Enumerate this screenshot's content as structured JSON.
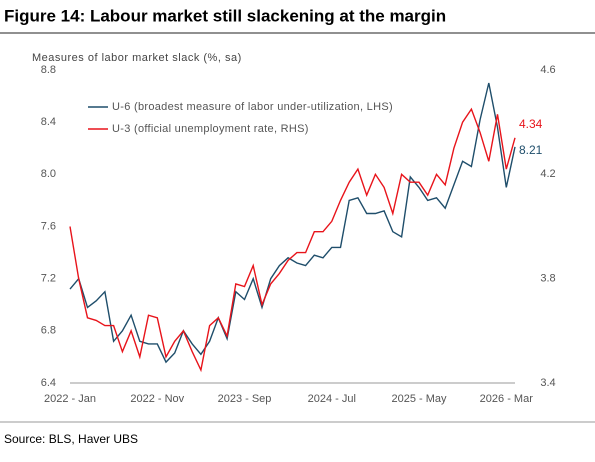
{
  "chart_data": {
    "type": "line",
    "title": "Figure 14: Labour market still slackening at the margin",
    "subtitle": "Measures of labor market slack (%, sa)",
    "source": "Source: BLS, Haver UBS",
    "categories": [
      "2022 - Jan",
      null,
      null,
      null,
      null,
      null,
      null,
      null,
      null,
      null,
      "2022 - Nov",
      null,
      null,
      null,
      null,
      null,
      null,
      null,
      null,
      null,
      "2023 - Sep",
      null,
      null,
      null,
      null,
      null,
      null,
      null,
      null,
      null,
      "2024 - Jul",
      null,
      null,
      null,
      null,
      null,
      null,
      null,
      null,
      null,
      "2025 - May",
      null,
      null,
      null,
      null,
      null,
      null,
      null,
      null,
      null,
      "2026 - Mar",
      null
    ],
    "series": [
      {
        "name": "U-6 (broadest measure of labor under-utilization, LHS)",
        "color": "#1f4e6b",
        "values": [
          7.12,
          7.2,
          6.98,
          7.03,
          7.1,
          6.72,
          6.8,
          6.92,
          6.72,
          6.7,
          6.7,
          6.56,
          6.63,
          6.8,
          6.7,
          6.62,
          6.72,
          6.9,
          6.74,
          7.1,
          7.04,
          7.2,
          6.98,
          7.2,
          7.3,
          7.36,
          7.32,
          7.3,
          7.38,
          7.36,
          7.44,
          7.44,
          7.8,
          7.82,
          7.7,
          7.7,
          7.72,
          7.56,
          7.52,
          7.98,
          7.9,
          7.8,
          7.82,
          7.74,
          7.92,
          8.1,
          8.06,
          8.42,
          8.7,
          8.36,
          7.9,
          8.21
        ]
      },
      {
        "name": "U-3 (official unemployment rate, RHS)",
        "color": "#e8141b",
        "axis": "y2",
        "values": [
          4.0,
          3.8,
          3.65,
          3.64,
          3.62,
          3.62,
          3.52,
          3.6,
          3.5,
          3.66,
          3.65,
          3.5,
          3.56,
          3.6,
          3.52,
          3.45,
          3.62,
          3.65,
          3.58,
          3.78,
          3.77,
          3.85,
          3.7,
          3.78,
          3.82,
          3.87,
          3.9,
          3.9,
          3.98,
          3.98,
          4.02,
          4.1,
          4.17,
          4.22,
          4.12,
          4.2,
          4.15,
          4.05,
          4.2,
          4.17,
          4.17,
          4.12,
          4.2,
          4.16,
          4.3,
          4.4,
          4.45,
          4.36,
          4.25,
          4.43,
          4.22,
          4.34
        ]
      }
    ],
    "ylim": [
      6.4,
      8.8
    ],
    "yticks": [
      6.4,
      6.8,
      7.2,
      7.6,
      {
        "value": 8,
        "label": "8.0"
      },
      8.4,
      8.8
    ],
    "y2lim": [
      3.4,
      4.6
    ],
    "y2ticks": [
      3.4,
      3.8,
      4.2,
      4.6
    ],
    "grid": false,
    "legend": "upper left"
  }
}
